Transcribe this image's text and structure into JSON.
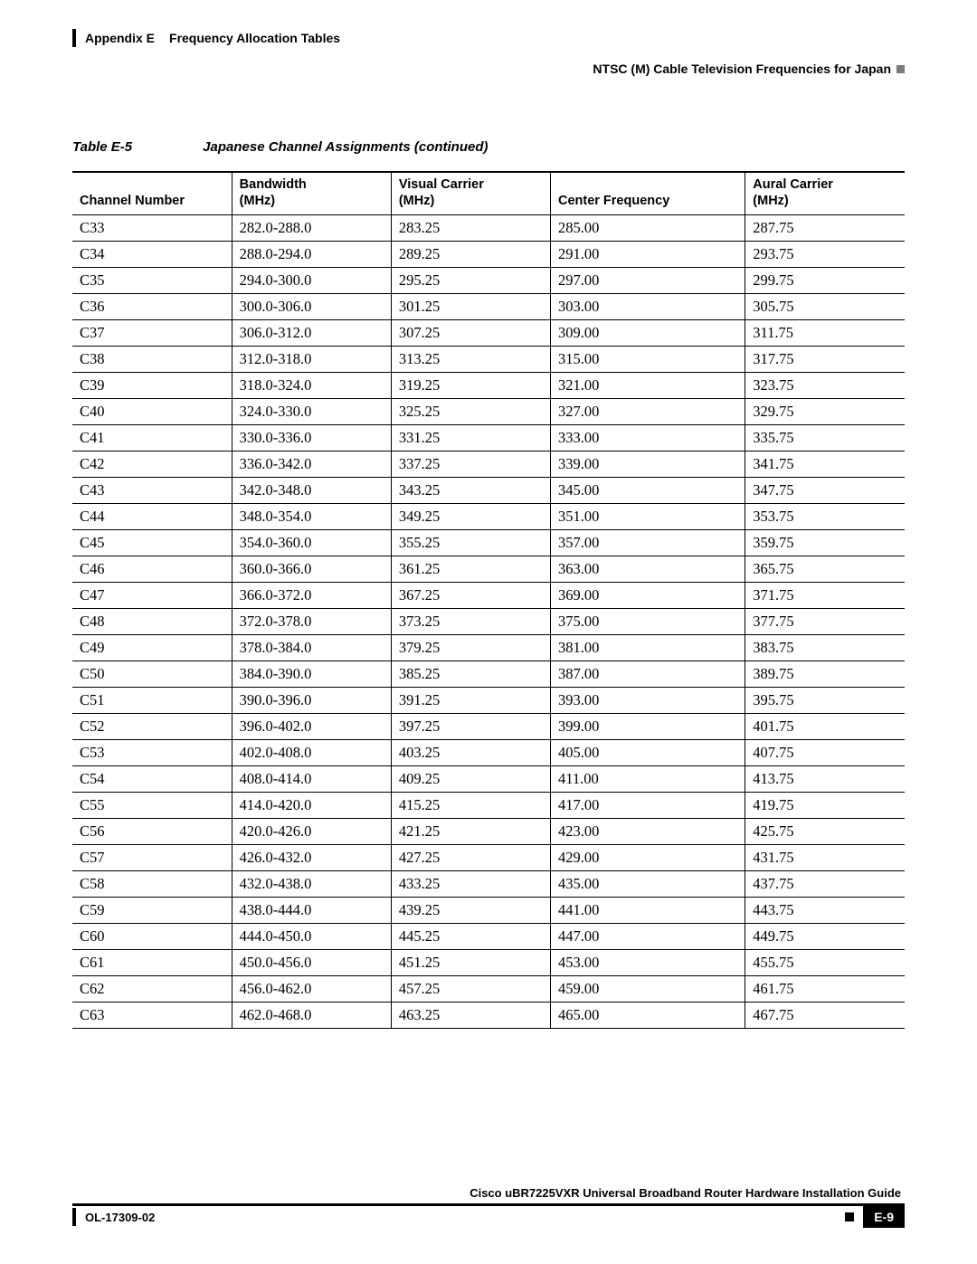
{
  "header": {
    "appendix": "Appendix E",
    "appendix_title": "Frequency Allocation Tables",
    "section_title": "NTSC (M) Cable Television Frequencies for Japan"
  },
  "caption": {
    "table_number": "Table E-5",
    "table_title": "Japanese Channel Assignments (continued)"
  },
  "table": {
    "columns": [
      "Channel Number",
      "Bandwidth\n(MHz)",
      "Visual Carrier\n(MHz)",
      "Center Frequency",
      "Aural Carrier\n(MHz)"
    ],
    "rows": [
      [
        "C33",
        "282.0-288.0",
        "283.25",
        "285.00",
        "287.75"
      ],
      [
        "C34",
        "288.0-294.0",
        "289.25",
        "291.00",
        "293.75"
      ],
      [
        "C35",
        "294.0-300.0",
        "295.25",
        "297.00",
        "299.75"
      ],
      [
        "C36",
        "300.0-306.0",
        "301.25",
        "303.00",
        "305.75"
      ],
      [
        "C37",
        "306.0-312.0",
        "307.25",
        "309.00",
        "311.75"
      ],
      [
        "C38",
        "312.0-318.0",
        "313.25",
        "315.00",
        "317.75"
      ],
      [
        "C39",
        "318.0-324.0",
        "319.25",
        "321.00",
        "323.75"
      ],
      [
        "C40",
        "324.0-330.0",
        "325.25",
        "327.00",
        "329.75"
      ],
      [
        "C41",
        "330.0-336.0",
        "331.25",
        "333.00",
        "335.75"
      ],
      [
        "C42",
        "336.0-342.0",
        "337.25",
        "339.00",
        "341.75"
      ],
      [
        "C43",
        "342.0-348.0",
        "343.25",
        "345.00",
        "347.75"
      ],
      [
        "C44",
        "348.0-354.0",
        "349.25",
        "351.00",
        "353.75"
      ],
      [
        "C45",
        "354.0-360.0",
        "355.25",
        "357.00",
        "359.75"
      ],
      [
        "C46",
        "360.0-366.0",
        "361.25",
        "363.00",
        "365.75"
      ],
      [
        "C47",
        "366.0-372.0",
        "367.25",
        "369.00",
        "371.75"
      ],
      [
        "C48",
        "372.0-378.0",
        "373.25",
        "375.00",
        "377.75"
      ],
      [
        "C49",
        "378.0-384.0",
        "379.25",
        "381.00",
        "383.75"
      ],
      [
        "C50",
        "384.0-390.0",
        "385.25",
        "387.00",
        "389.75"
      ],
      [
        "C51",
        "390.0-396.0",
        "391.25",
        "393.00",
        "395.75"
      ],
      [
        "C52",
        "396.0-402.0",
        "397.25",
        "399.00",
        "401.75"
      ],
      [
        "C53",
        "402.0-408.0",
        "403.25",
        "405.00",
        "407.75"
      ],
      [
        "C54",
        "408.0-414.0",
        "409.25",
        "411.00",
        "413.75"
      ],
      [
        "C55",
        "414.0-420.0",
        "415.25",
        "417.00",
        "419.75"
      ],
      [
        "C56",
        "420.0-426.0",
        "421.25",
        "423.00",
        "425.75"
      ],
      [
        "C57",
        "426.0-432.0",
        "427.25",
        "429.00",
        "431.75"
      ],
      [
        "C58",
        "432.0-438.0",
        "433.25",
        "435.00",
        "437.75"
      ],
      [
        "C59",
        "438.0-444.0",
        "439.25",
        "441.00",
        "443.75"
      ],
      [
        "C60",
        "444.0-450.0",
        "445.25",
        "447.00",
        "449.75"
      ],
      [
        "C61",
        "450.0-456.0",
        "451.25",
        "453.00",
        "455.75"
      ],
      [
        "C62",
        "456.0-462.0",
        "457.25",
        "459.00",
        "461.75"
      ],
      [
        "C63",
        "462.0-468.0",
        "463.25",
        "465.00",
        "467.75"
      ]
    ]
  },
  "footer": {
    "guide_title": "Cisco uBR7225VXR Universal Broadband Router Hardware Installation Guide",
    "doc_number": "OL-17309-02",
    "page_number": "E-9"
  },
  "style": {
    "text_color": "#000000",
    "background": "#ffffff",
    "header_marker_gray": "#7a7a7a"
  }
}
